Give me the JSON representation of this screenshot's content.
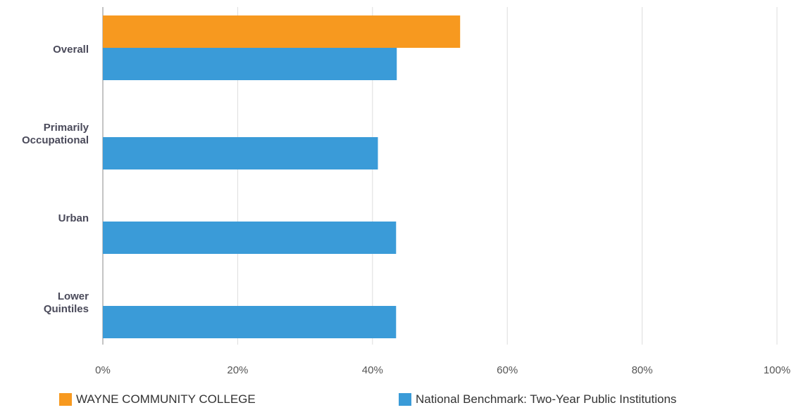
{
  "colors": {
    "college": "#F7991F",
    "benchmark": "#3A9BD8",
    "grid": "#dddddd",
    "axis": "#888888",
    "category_label": "#4a4a5a",
    "tick_label": "#555555"
  },
  "legend": {
    "college": "WAYNE COMMUNITY COLLEGE",
    "benchmark": "National Benchmark: Two-Year Public Institutions"
  },
  "chart_data": {
    "type": "bar",
    "orientation": "horizontal",
    "categories": [
      [
        "Overall"
      ],
      [
        "Primarily",
        "Occupational"
      ],
      [
        "Urban"
      ],
      [
        "Lower",
        "Quintiles"
      ]
    ],
    "series": [
      {
        "name": "WAYNE COMMUNITY COLLEGE",
        "color": "#F7991F",
        "values": [
          53.0,
          null,
          null,
          null
        ]
      },
      {
        "name": "National Benchmark: Two-Year Public Institutions",
        "color": "#3A9BD8",
        "values": [
          43.6,
          40.8,
          43.5,
          43.5
        ]
      }
    ],
    "xlim": [
      0,
      100
    ],
    "xticks": [
      "0%",
      "20%",
      "40%",
      "60%",
      "80%",
      "100%"
    ],
    "title": "",
    "xlabel": "",
    "ylabel": "",
    "grid": true,
    "legend_position": "bottom"
  }
}
